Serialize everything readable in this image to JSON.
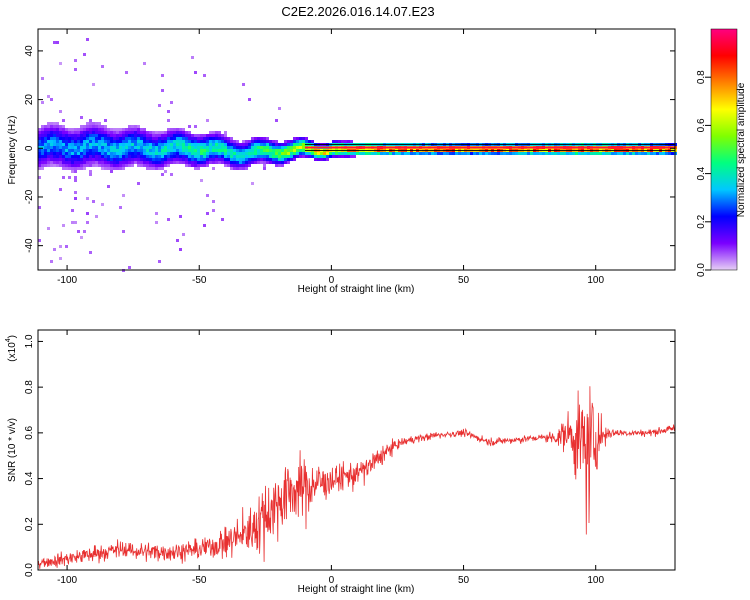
{
  "chart_data": [
    {
      "type": "heatmap",
      "title": "C2E2.2026.016.14.07.E23",
      "xlabel": "Height of straight line (km)",
      "ylabel": "Frequency (Hz)",
      "xlim": [
        -111,
        130
      ],
      "ylim": [
        -50,
        49
      ],
      "xticks": [
        -100,
        -50,
        0,
        50,
        100
      ],
      "yticks": [
        -40,
        -20,
        0,
        20,
        40
      ],
      "colorbar": {
        "label": "Normalized spectral amplitude",
        "range": [
          0,
          1
        ],
        "ticks": [
          0.0,
          0.2,
          0.4,
          0.6,
          0.8
        ],
        "colormap": [
          "#e6d0f5",
          "#7a00ff",
          "#0000ff",
          "#00c8ff",
          "#00ff80",
          "#80ff00",
          "#ffff00",
          "#ff8000",
          "#ff0000",
          "#ff0080"
        ]
      },
      "ridge": [
        {
          "x": -110,
          "freq": 1.0,
          "amp": 0.35,
          "spread": 4.5
        },
        {
          "x": -90,
          "freq": 1.2,
          "amp": 0.38,
          "spread": 4.5
        },
        {
          "x": -70,
          "freq": 0.5,
          "amp": 0.4,
          "spread": 4.0
        },
        {
          "x": -50,
          "freq": 0.5,
          "amp": 0.5,
          "spread": 3.5
        },
        {
          "x": -35,
          "freq": -1.5,
          "amp": 0.45,
          "spread": 3.0
        },
        {
          "x": -20,
          "freq": -0.5,
          "amp": 0.6,
          "spread": 2.5
        },
        {
          "x": -5,
          "freq": 0.3,
          "amp": 0.8,
          "spread": 1.8
        },
        {
          "x": 10,
          "freq": 0.3,
          "amp": 0.95,
          "spread": 1.5
        },
        {
          "x": 50,
          "freq": 0.3,
          "amp": 1.0,
          "spread": 1.2
        },
        {
          "x": 97,
          "freq": 0.3,
          "amp": 0.95,
          "spread": 1.5
        },
        {
          "x": 130,
          "freq": 0.3,
          "amp": 1.0,
          "spread": 1.2
        }
      ]
    },
    {
      "type": "line",
      "xlabel": "Height of straight line (km)",
      "ylabel": "SNR (10 * v/v)",
      "yscale_label": "(x10",
      "yscale_exp": "4",
      "yscale_close": ")",
      "xlim": [
        -111,
        130
      ],
      "ylim": [
        0,
        1.05
      ],
      "xticks": [
        -100,
        -50,
        0,
        50,
        100
      ],
      "yticks": [
        0.0,
        0.2,
        0.4,
        0.6,
        0.8,
        1.0
      ],
      "line_color": "#e83030",
      "series": [
        {
          "name": "SNR",
          "x": [
            -111,
            -100,
            -90,
            -80,
            -70,
            -60,
            -50,
            -40,
            -35,
            -30,
            -25,
            -20,
            -15,
            -10,
            -5,
            0,
            5,
            10,
            15,
            20,
            25,
            30,
            40,
            50,
            60,
            70,
            80,
            85,
            90,
            95,
            97,
            100,
            105,
            110,
            120,
            130
          ],
          "values": [
            0.03,
            0.05,
            0.07,
            0.09,
            0.08,
            0.08,
            0.09,
            0.12,
            0.15,
            0.18,
            0.24,
            0.3,
            0.35,
            0.36,
            0.38,
            0.39,
            0.41,
            0.42,
            0.46,
            0.51,
            0.55,
            0.57,
            0.59,
            0.6,
            0.56,
            0.57,
            0.58,
            0.58,
            0.6,
            0.55,
            0.5,
            0.58,
            0.6,
            0.6,
            0.6,
            0.62
          ],
          "noise": [
            0.03,
            0.04,
            0.05,
            0.05,
            0.05,
            0.05,
            0.06,
            0.08,
            0.11,
            0.14,
            0.2,
            0.2,
            0.18,
            0.16,
            0.12,
            0.08,
            0.08,
            0.08,
            0.07,
            0.05,
            0.03,
            0.02,
            0.02,
            0.02,
            0.02,
            0.02,
            0.02,
            0.04,
            0.12,
            0.3,
            0.45,
            0.2,
            0.03,
            0.02,
            0.02,
            0.02
          ]
        }
      ]
    }
  ]
}
